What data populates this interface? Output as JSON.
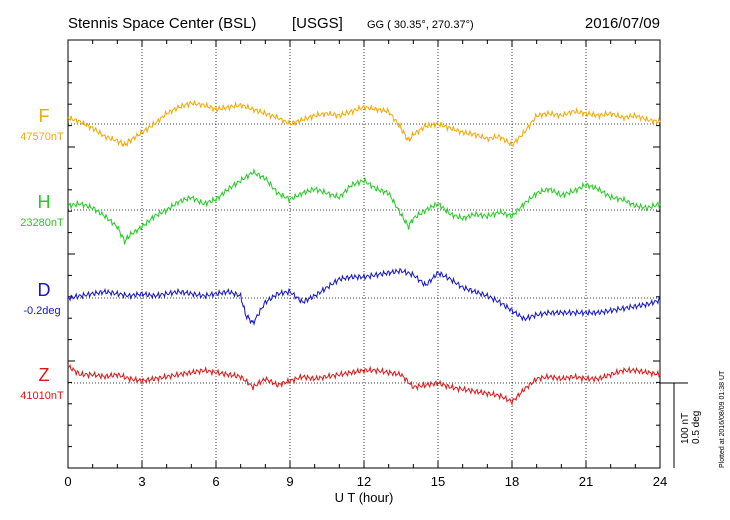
{
  "header": {
    "station": "Stennis Space Center (BSL)",
    "network": "[USGS]",
    "coords": "GG ( 30.35°, 270.37°)",
    "date": "2016/07/09"
  },
  "footer": {
    "plotted_at": "Plotted at 2016/08/09 01:38 UT"
  },
  "scale": {
    "nt": "100 nT",
    "deg": "0.5 deg"
  },
  "chart_data": {
    "type": "line",
    "title": "Stennis Space Center (BSL)",
    "xlabel": "U T (hour)",
    "xlim": [
      0,
      24
    ],
    "x_ticks": [
      "0",
      "3",
      "6",
      "9",
      "12",
      "15",
      "18",
      "21",
      "24"
    ],
    "grid": "vertical dotted at every 3 hours, dotted baseline per component",
    "scale_nT_per_unit": "100 nT / 0.5 deg bar",
    "series": [
      {
        "name": "F",
        "baseline_label": "47570nT",
        "color": "#f5a800",
        "unit": "nT",
        "x": [
          0,
          0.5,
          1,
          1.5,
          2,
          2.3,
          2.5,
          3,
          3.5,
          4,
          4.5,
          5,
          5.5,
          6,
          6.5,
          7,
          7.5,
          8,
          8.5,
          9,
          9.5,
          10,
          10.5,
          11,
          11.5,
          12,
          12.5,
          13,
          13.5,
          13.8,
          14,
          14.5,
          15,
          15.5,
          16,
          16.5,
          17,
          17.5,
          18,
          18.5,
          19,
          19.5,
          20,
          20.5,
          21,
          21.5,
          22,
          22.5,
          23,
          23.5,
          24
        ],
        "values": [
          3,
          1,
          -2,
          -6,
          -8,
          -10,
          -8,
          -4,
          0,
          5,
          8,
          10,
          9,
          7,
          8,
          9,
          7,
          5,
          3,
          0,
          2,
          4,
          5,
          4,
          6,
          8,
          7,
          6,
          -2,
          -8,
          -5,
          -1,
          0,
          -2,
          -4,
          -5,
          -7,
          -6,
          -10,
          -4,
          4,
          5,
          4,
          6,
          5,
          4,
          5,
          3,
          4,
          2,
          1
        ]
      },
      {
        "name": "H",
        "baseline_label": "23280nT",
        "color": "#22cc22",
        "unit": "nT",
        "x": [
          0,
          0.5,
          1,
          1.5,
          2,
          2.3,
          2.5,
          3,
          3.5,
          4,
          4.5,
          5,
          5.5,
          6,
          6.5,
          7,
          7.5,
          8,
          8.5,
          9,
          9.5,
          10,
          10.5,
          11,
          11.5,
          12,
          12.5,
          13,
          13.5,
          13.8,
          14,
          14.5,
          15,
          15.5,
          16,
          16.5,
          17,
          17.5,
          18,
          18.5,
          19,
          19.5,
          20,
          20.5,
          21,
          21.5,
          22,
          22.5,
          23,
          23.5,
          24
        ],
        "values": [
          2,
          3,
          1,
          -3,
          -8,
          -15,
          -12,
          -8,
          -3,
          0,
          4,
          6,
          3,
          5,
          10,
          14,
          18,
          15,
          8,
          5,
          8,
          10,
          8,
          6,
          12,
          14,
          10,
          8,
          -2,
          -8,
          -4,
          0,
          3,
          -2,
          -4,
          -2,
          -3,
          -1,
          -3,
          3,
          8,
          10,
          7,
          9,
          12,
          10,
          6,
          5,
          2,
          1,
          3
        ]
      },
      {
        "name": "D",
        "baseline_label": "-0.2deg",
        "color": "#1515cc",
        "unit": "deg",
        "x": [
          0,
          0.5,
          1,
          1.5,
          2,
          2.5,
          3,
          3.5,
          4,
          4.5,
          5,
          5.5,
          6,
          6.5,
          7,
          7.2,
          7.5,
          8,
          8.5,
          9,
          9.5,
          10,
          10.5,
          11,
          11.5,
          12,
          12.5,
          13,
          13.5,
          14,
          14.5,
          15,
          15.5,
          16,
          16.5,
          17,
          17.5,
          18,
          18.5,
          19,
          19.5,
          20,
          20.5,
          21,
          21.5,
          22,
          22.5,
          23,
          23.5,
          24
        ],
        "values": [
          0,
          1,
          2,
          3,
          2,
          1,
          2,
          1,
          2,
          3,
          2,
          1,
          2,
          3,
          1,
          -8,
          -12,
          -2,
          2,
          3,
          -2,
          1,
          5,
          9,
          10,
          10,
          11,
          12,
          13,
          11,
          6,
          12,
          9,
          5,
          3,
          1,
          -2,
          -6,
          -10,
          -8,
          -7,
          -7,
          -7,
          -7,
          -7,
          -6,
          -5,
          -4,
          -3,
          -1
        ]
      },
      {
        "name": "Z",
        "baseline_label": "41010nT",
        "color": "#e01515",
        "unit": "nT",
        "x": [
          0,
          0.5,
          1,
          1.5,
          2,
          2.5,
          3,
          3.5,
          4,
          4.5,
          5,
          5.5,
          6,
          6.5,
          7,
          7.5,
          8,
          8.5,
          9,
          9.5,
          10,
          10.5,
          11,
          11.5,
          12,
          12.5,
          13,
          13.5,
          14,
          14.5,
          15,
          15.5,
          16,
          16.5,
          17,
          17.5,
          18,
          18.5,
          19,
          19.5,
          20,
          20.5,
          21,
          21.5,
          22,
          22.5,
          23,
          23.5,
          24
        ],
        "values": [
          8,
          4,
          4,
          3,
          4,
          2,
          1,
          2,
          3,
          4,
          5,
          6,
          5,
          4,
          3,
          -2,
          2,
          -1,
          1,
          3,
          2,
          3,
          4,
          5,
          6,
          6,
          5,
          4,
          -2,
          -1,
          0,
          -2,
          -3,
          -4,
          -5,
          -6,
          -9,
          -3,
          2,
          3,
          2,
          3,
          2,
          2,
          4,
          6,
          6,
          5,
          4
        ]
      }
    ]
  }
}
